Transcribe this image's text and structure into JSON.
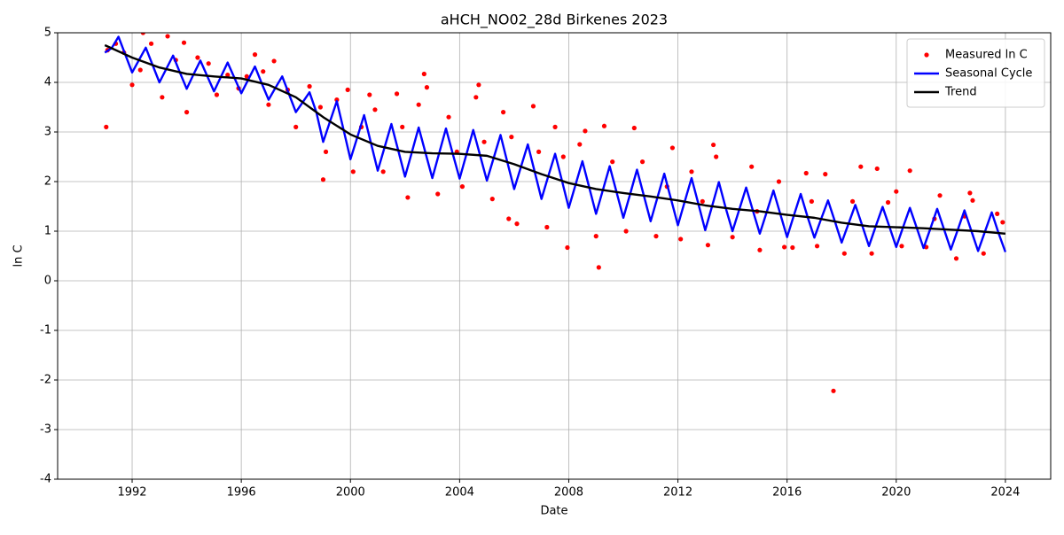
{
  "chart_data": {
    "type": "line",
    "title": "aHCH_NO02_28d Birkenes 2023",
    "xlabel": "Date",
    "ylabel": "ln C",
    "xlim": [
      1989.27,
      2025.66
    ],
    "ylim": [
      -4,
      5
    ],
    "xticks": [
      1992,
      1996,
      2000,
      2004,
      2008,
      2012,
      2016,
      2020,
      2024
    ],
    "yticks": [
      -4,
      -3,
      -2,
      -1,
      0,
      1,
      2,
      3,
      4,
      5
    ],
    "grid": true,
    "legend": "upper right",
    "series": [
      {
        "name": "Measured ln C",
        "type": "scatter",
        "color": "#ff0000",
        "x": [
          1991.1,
          1991.4,
          1991.7,
          1991.05,
          1992.0,
          1992.3,
          1992.4,
          1992.7,
          1993.1,
          1993.3,
          1993.6,
          1993.9,
          1994.0,
          1994.4,
          1994.8,
          1995.1,
          1995.5,
          1995.9,
          1996.2,
          1996.5,
          1996.8,
          1997.0,
          1997.2,
          1997.7,
          1998.0,
          1998.5,
          1998.9,
          1999.0,
          1999.1,
          1999.5,
          1999.9,
          2000.1,
          2000.4,
          2000.7,
          2000.9,
          2001.2,
          2001.7,
          2001.9,
          2002.1,
          2002.5,
          2002.7,
          2002.8,
          2003.2,
          2003.6,
          2003.9,
          2004.1,
          2004.6,
          2004.7,
          2004.9,
          2005.2,
          2005.6,
          2005.8,
          2005.9,
          2006.1,
          2006.7,
          2006.9,
          2007.2,
          2007.5,
          2007.8,
          2007.95,
          2008.4,
          2008.6,
          2009.1,
          2009.0,
          2009.3,
          2009.6,
          2010.1,
          2010.4,
          2010.7,
          2011.2,
          2011.8,
          2011.6,
          2012.1,
          2012.5,
          2012.9,
          2013.1,
          2013.3,
          2013.4,
          2014.0,
          2014.7,
          2014.9,
          2015.0,
          2015.7,
          2015.9,
          2016.2,
          2016.7,
          2016.9,
          2017.1,
          2017.4,
          2017.7,
          2018.1,
          2018.4,
          2018.7,
          2019.1,
          2019.3,
          2019.7,
          2020.0,
          2020.2,
          2020.5,
          2021.1,
          2021.6,
          2021.4,
          2022.2,
          2022.5,
          2022.7,
          2022.8,
          2023.2,
          2023.7,
          2023.9
        ],
        "values": [
          4.65,
          4.78,
          4.6,
          3.1,
          3.95,
          4.25,
          5.0,
          4.78,
          3.7,
          4.93,
          4.45,
          4.8,
          3.4,
          4.5,
          4.38,
          3.75,
          4.15,
          3.88,
          4.12,
          4.56,
          4.22,
          3.55,
          4.43,
          3.85,
          3.1,
          3.92,
          3.5,
          2.04,
          2.6,
          3.65,
          3.85,
          2.2,
          3.1,
          3.75,
          3.45,
          2.2,
          3.77,
          3.1,
          1.68,
          3.55,
          4.17,
          3.9,
          1.75,
          3.3,
          2.6,
          1.9,
          3.7,
          3.95,
          2.8,
          1.65,
          3.4,
          1.25,
          2.9,
          1.15,
          3.52,
          2.6,
          1.08,
          3.1,
          2.5,
          0.67,
          2.75,
          3.02,
          0.27,
          0.9,
          3.12,
          2.4,
          1.0,
          3.08,
          2.4,
          0.9,
          2.68,
          1.9,
          0.84,
          2.2,
          1.6,
          0.72,
          2.74,
          2.5,
          0.88,
          2.3,
          1.4,
          0.62,
          2.0,
          0.68,
          0.67,
          2.17,
          1.6,
          0.7,
          2.15,
          -2.22,
          0.55,
          1.6,
          2.3,
          0.55,
          2.26,
          1.58,
          1.8,
          0.7,
          2.22,
          0.68,
          1.72,
          1.25,
          0.45,
          1.3,
          1.77,
          1.62,
          0.55,
          1.35,
          1.18
        ]
      },
      {
        "name": "Seasonal Cycle",
        "type": "line",
        "color": "#0000ff",
        "x": [
          1991,
          1991.25,
          1991.5,
          1991.75,
          1992,
          1992.25,
          1992.5,
          1992.75,
          1993,
          1993.25,
          1993.5,
          1993.75,
          1994,
          1994.25,
          1994.5,
          1994.75,
          1995,
          1995.25,
          1995.5,
          1995.75,
          1996,
          1996.25,
          1996.5,
          1996.75,
          1997,
          1997.25,
          1997.5,
          1997.75,
          1998,
          1998.25,
          1998.5,
          1998.75,
          1999,
          1999.25,
          1999.5,
          1999.75,
          2000,
          2000.25,
          2000.5,
          2000.75,
          2001,
          2001.25,
          2001.5,
          2001.75,
          2002,
          2002.25,
          2002.5,
          2002.75,
          2003,
          2003.25,
          2003.5,
          2003.75,
          2004,
          2004.25,
          2004.5,
          2004.75,
          2005,
          2005.25,
          2005.5,
          2005.75,
          2006,
          2006.25,
          2006.5,
          2006.75,
          2007,
          2007.25,
          2007.5,
          2007.75,
          2008,
          2008.25,
          2008.5,
          2008.75,
          2009,
          2009.25,
          2009.5,
          2009.75,
          2010,
          2010.25,
          2010.5,
          2010.75,
          2011,
          2011.25,
          2011.5,
          2011.75,
          2012,
          2012.25,
          2012.5,
          2012.75,
          2013,
          2013.25,
          2013.5,
          2013.75,
          2014,
          2014.25,
          2014.5,
          2014.75,
          2015,
          2015.25,
          2015.5,
          2015.75,
          2016,
          2016.25,
          2016.5,
          2016.75,
          2017,
          2017.25,
          2017.5,
          2017.75,
          2018,
          2018.25,
          2018.5,
          2018.75,
          2019,
          2019.25,
          2019.5,
          2019.75,
          2020,
          2020.25,
          2020.5,
          2020.75,
          2021,
          2021.25,
          2021.5,
          2021.75,
          2022,
          2022.25,
          2022.5,
          2022.75,
          2023,
          2023.25,
          2023.5,
          2023.75,
          2024
        ],
        "values": [
          4.6,
          4.69,
          4.92,
          4.56,
          4.2,
          4.45,
          4.7,
          4.35,
          4.0,
          4.27,
          4.54,
          4.2,
          3.87,
          4.16,
          4.44,
          4.13,
          3.82,
          4.11,
          4.4,
          4.09,
          3.78,
          4.05,
          4.32,
          3.98,
          3.65,
          3.89,
          4.12,
          3.76,
          3.4,
          3.6,
          3.8,
          3.4,
          2.8,
          3.21,
          3.62,
          3.04,
          2.45,
          2.89,
          3.34,
          2.78,
          2.22,
          2.69,
          3.16,
          2.63,
          2.1,
          2.59,
          3.09,
          2.58,
          2.07,
          2.57,
          3.07,
          2.56,
          2.06,
          2.55,
          3.04,
          2.53,
          2.02,
          2.48,
          2.94,
          2.39,
          1.85,
          2.3,
          2.75,
          2.2,
          1.65,
          2.11,
          2.56,
          2.02,
          1.47,
          1.94,
          2.41,
          1.88,
          1.35,
          1.83,
          2.31,
          1.79,
          1.27,
          1.75,
          2.24,
          1.72,
          1.2,
          1.68,
          2.16,
          1.64,
          1.12,
          1.6,
          2.07,
          1.55,
          1.02,
          1.5,
          1.99,
          1.47,
          1.0,
          1.44,
          1.88,
          1.41,
          0.95,
          1.38,
          1.82,
          1.35,
          0.88,
          1.32,
          1.75,
          1.29,
          0.87,
          1.25,
          1.62,
          1.2,
          0.77,
          1.15,
          1.53,
          1.12,
          0.7,
          1.1,
          1.49,
          1.09,
          0.68,
          1.08,
          1.47,
          1.07,
          0.66,
          1.05,
          1.45,
          1.04,
          0.63,
          1.02,
          1.42,
          1.01,
          0.6,
          0.99,
          1.38,
          0.96,
          0.58
        ]
      },
      {
        "name": "Trend",
        "type": "line",
        "color": "#000000",
        "x": [
          1991,
          1992,
          1993,
          1994,
          1995,
          1996,
          1997,
          1998,
          1999,
          2000,
          2001,
          2002,
          2003,
          2004,
          2005,
          2006,
          2007,
          2008,
          2009,
          2010,
          2011,
          2012,
          2013,
          2014,
          2015,
          2016,
          2017,
          2018,
          2019,
          2020,
          2021,
          2022,
          2023,
          2024
        ],
        "values": [
          4.75,
          4.5,
          4.3,
          4.17,
          4.12,
          4.08,
          3.95,
          3.7,
          3.3,
          2.95,
          2.72,
          2.6,
          2.57,
          2.56,
          2.52,
          2.35,
          2.15,
          1.97,
          1.85,
          1.77,
          1.7,
          1.62,
          1.52,
          1.45,
          1.4,
          1.33,
          1.27,
          1.17,
          1.1,
          1.08,
          1.06,
          1.03,
          1.0,
          0.95
        ]
      }
    ]
  }
}
